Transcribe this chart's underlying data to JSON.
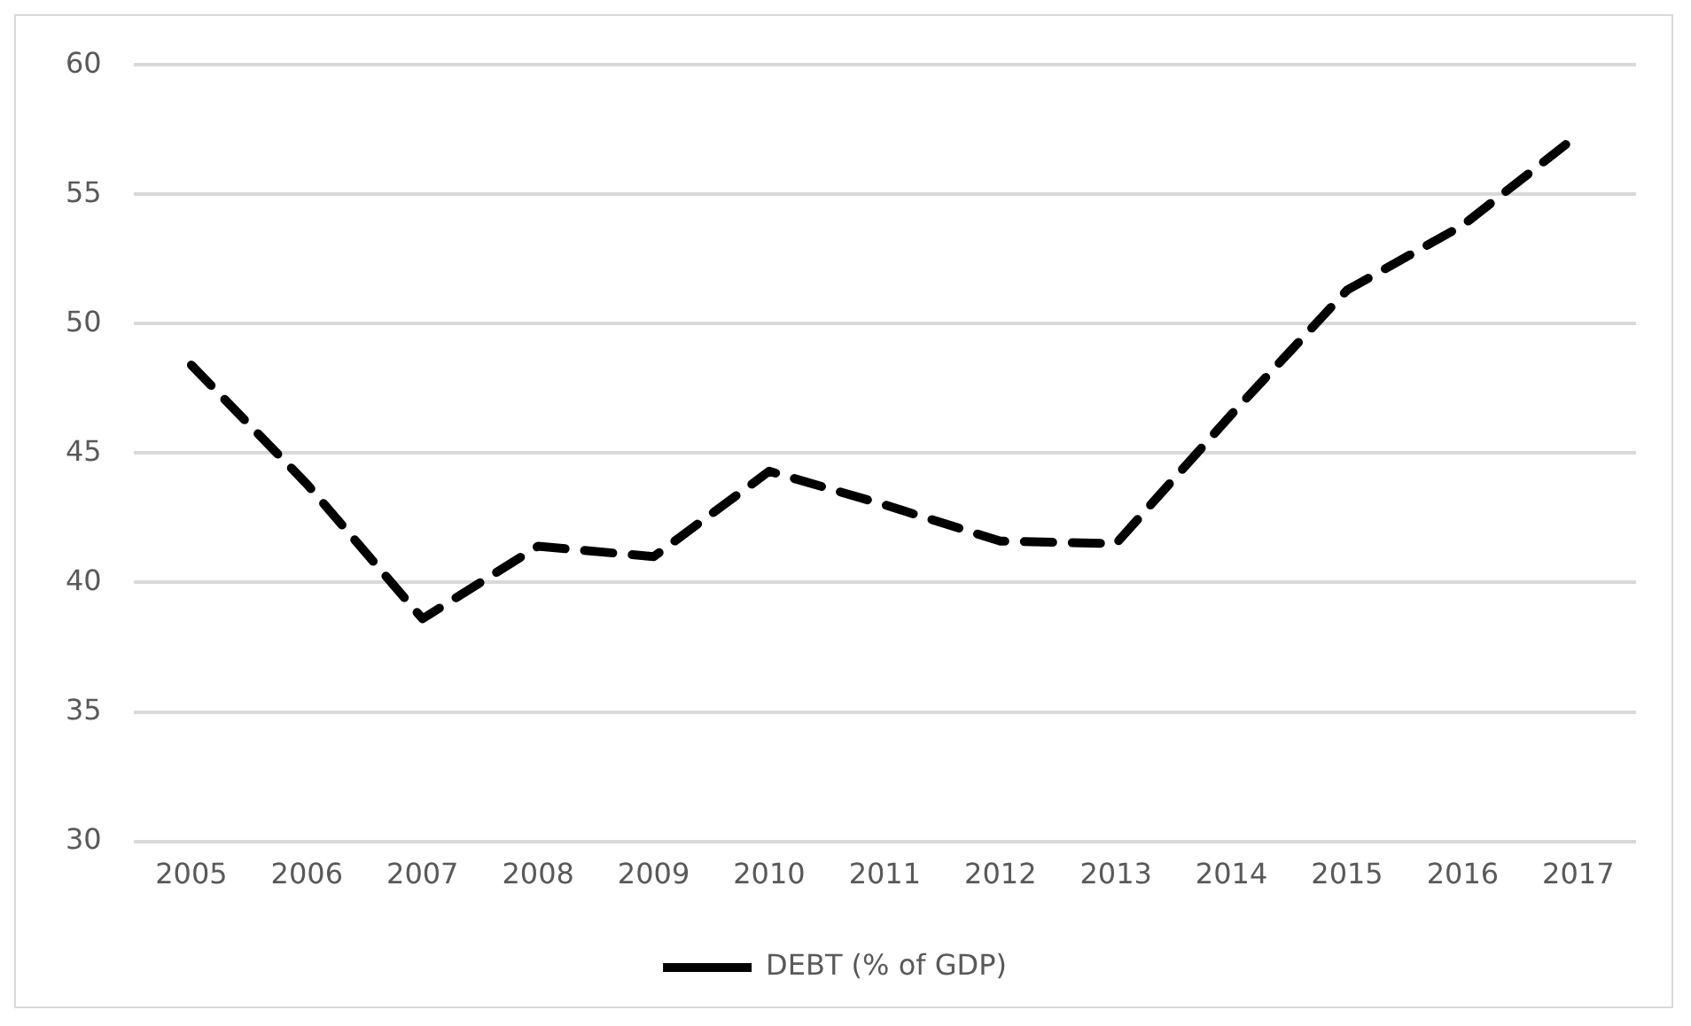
{
  "chart_data": {
    "type": "line",
    "categories": [
      "2005",
      "2006",
      "2007",
      "2008",
      "2009",
      "2010",
      "2011",
      "2012",
      "2013",
      "2014",
      "2015",
      "2016",
      "2017"
    ],
    "series": [
      {
        "name": "DEBT (% of GDP)",
        "color": "#000000",
        "values": [
          48.4,
          43.8,
          38.6,
          41.4,
          41.0,
          44.3,
          43.0,
          41.6,
          41.5,
          46.5,
          51.3,
          53.8,
          57.3
        ]
      }
    ],
    "ylim": [
      30,
      60
    ],
    "yticks": [
      30,
      35,
      40,
      45,
      50,
      55,
      60
    ],
    "grid": "y",
    "legend": "bottom",
    "marker": "none",
    "line_style": "dashed"
  }
}
